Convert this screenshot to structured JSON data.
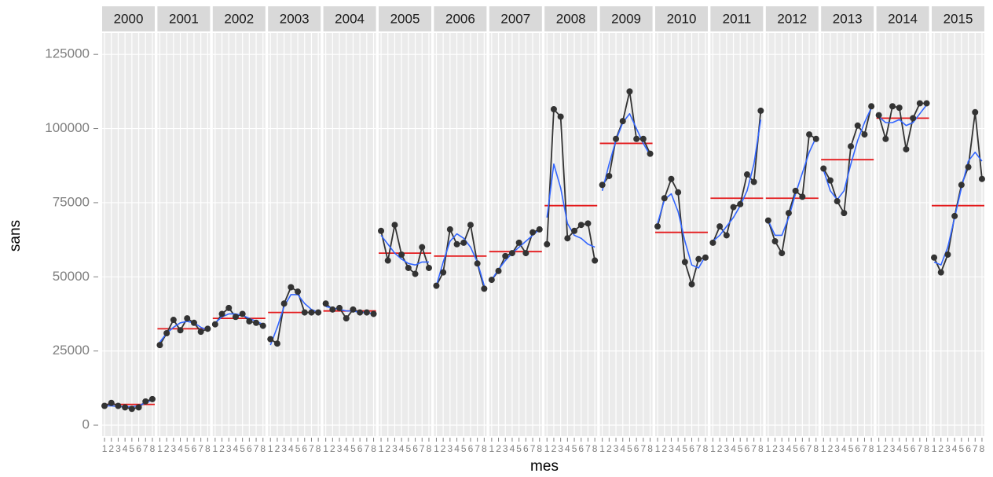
{
  "chart_data": {
    "type": "line",
    "x_label": "mes",
    "y_label": "sans",
    "x": [
      1,
      2,
      3,
      4,
      5,
      6,
      7,
      8
    ],
    "xticks": [
      1,
      2,
      3,
      4,
      5,
      6,
      7,
      8
    ],
    "xlim": [
      0.65,
      8.35
    ],
    "ylim": [
      -3700,
      132200
    ],
    "yticks": [
      0,
      25000,
      50000,
      75000,
      100000,
      125000
    ],
    "grid": true,
    "point_color": "#333333",
    "mean_color": "#e41a1c",
    "smooth_color": "#3366ff",
    "facets": [
      {
        "label": "2000",
        "values": [
          6500,
          7500,
          6500,
          6000,
          5500,
          6000,
          8000,
          8800
        ],
        "mean": 7000,
        "smooth": [
          6500,
          6500,
          6300,
          6200,
          6200,
          6600,
          7500,
          8500
        ]
      },
      {
        "label": "2001",
        "values": [
          27000,
          31000,
          35500,
          32000,
          36000,
          34500,
          31500,
          32500
        ],
        "mean": 32500,
        "smooth": [
          28000,
          31000,
          33000,
          34500,
          35000,
          34500,
          33000,
          32000
        ]
      },
      {
        "label": "2002",
        "values": [
          34000,
          37500,
          39500,
          36500,
          37500,
          35000,
          34500,
          33500
        ],
        "mean": 36000,
        "smooth": [
          34500,
          36500,
          37500,
          37500,
          37000,
          36000,
          35000,
          34000
        ]
      },
      {
        "label": "2003",
        "values": [
          29000,
          27500,
          41000,
          46500,
          45000,
          38000,
          38000,
          38000
        ],
        "mean": 38000,
        "smooth": [
          27000,
          33000,
          40000,
          44000,
          44000,
          41000,
          39000,
          38000
        ]
      },
      {
        "label": "2004",
        "values": [
          41000,
          39000,
          39500,
          36000,
          39000,
          38000,
          38000,
          37500
        ],
        "mean": 38500,
        "smooth": [
          40000,
          39500,
          39000,
          38500,
          38500,
          38000,
          38000,
          37500
        ]
      },
      {
        "label": "2005",
        "values": [
          65500,
          55500,
          67500,
          57500,
          53000,
          51000,
          60000,
          53000
        ],
        "mean": 58000,
        "smooth": [
          64000,
          61000,
          58000,
          56000,
          54500,
          54000,
          55000,
          55000
        ]
      },
      {
        "label": "2006",
        "values": [
          47000,
          51500,
          66000,
          61000,
          61500,
          67500,
          54500,
          46000
        ],
        "mean": 57000,
        "smooth": [
          47000,
          55000,
          62000,
          64500,
          63000,
          60000,
          55000,
          47000
        ]
      },
      {
        "label": "2007",
        "values": [
          49000,
          52000,
          57000,
          58000,
          61500,
          58000,
          65000,
          66000
        ],
        "mean": 58500,
        "smooth": [
          49000,
          52500,
          55500,
          58000,
          60000,
          62000,
          64000,
          66000
        ]
      },
      {
        "label": "2008",
        "values": [
          61000,
          106500,
          104000,
          63000,
          65500,
          67500,
          68000,
          55500
        ],
        "mean": 74000,
        "smooth": [
          70000,
          88000,
          80000,
          68000,
          64000,
          63000,
          61000,
          60000
        ]
      },
      {
        "label": "2009",
        "values": [
          81000,
          84000,
          96500,
          102500,
          112500,
          96500,
          96500,
          91500
        ],
        "mean": 95000,
        "smooth": [
          79000,
          88000,
          96000,
          102000,
          105000,
          100000,
          95000,
          91000
        ]
      },
      {
        "label": "2010",
        "values": [
          67000,
          76500,
          83000,
          78500,
          55000,
          47500,
          56000,
          56500
        ],
        "mean": 65000,
        "smooth": [
          68000,
          76000,
          78000,
          72000,
          62000,
          54000,
          53000,
          57000
        ]
      },
      {
        "label": "2011",
        "values": [
          61500,
          67000,
          64000,
          73500,
          74500,
          84500,
          82000,
          106000
        ],
        "mean": 76500,
        "smooth": [
          62000,
          64000,
          67000,
          70000,
          74000,
          79000,
          88000,
          103000
        ]
      },
      {
        "label": "2012",
        "values": [
          69000,
          62000,
          58000,
          71500,
          79000,
          77000,
          98000,
          96500
        ],
        "mean": 76500,
        "smooth": [
          69000,
          64000,
          64000,
          70000,
          78000,
          85000,
          92000,
          97000
        ]
      },
      {
        "label": "2013",
        "values": [
          86500,
          82500,
          75500,
          71500,
          94000,
          101000,
          98000,
          107500
        ],
        "mean": 89500,
        "smooth": [
          86000,
          79000,
          76000,
          79000,
          88000,
          96000,
          102000,
          107000
        ]
      },
      {
        "label": "2014",
        "values": [
          104500,
          96500,
          107500,
          107000,
          93000,
          103500,
          108500,
          108500
        ],
        "mean": 103500,
        "smooth": [
          104000,
          102000,
          102000,
          103000,
          101000,
          102000,
          105000,
          108000
        ]
      },
      {
        "label": "2015",
        "values": [
          56500,
          51500,
          57500,
          70500,
          81000,
          87000,
          105500,
          83000
        ],
        "mean": 74000,
        "smooth": [
          55000,
          54000,
          60000,
          70000,
          80000,
          89000,
          92000,
          89000
        ]
      }
    ]
  }
}
